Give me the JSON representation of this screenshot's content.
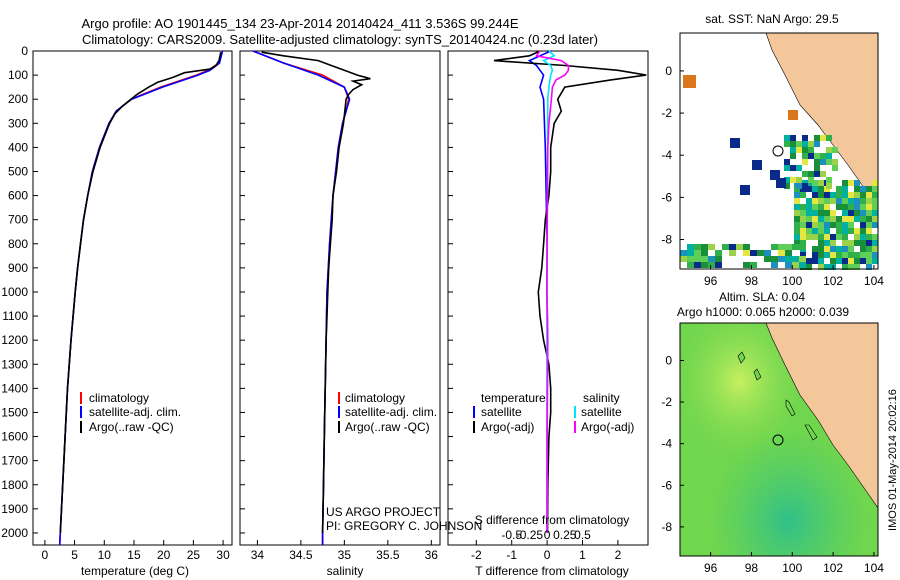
{
  "header": {
    "line1": "Argo profile: AO 1901445_134 23-Apr-2014 20140424_411 3.536S 99.244E",
    "line2": "Climatology: CARS2009. Satellite-adjusted climatology: synTS_20140424.nc (0.23d later)"
  },
  "colors": {
    "red": "#ff0000",
    "blue": "#0000ff",
    "black": "#000000",
    "cyan": "#00e5ff",
    "magenta": "#ff00ff",
    "land": "#f4c79b"
  },
  "depth_axis": {
    "ticks": [
      0,
      100,
      200,
      300,
      400,
      500,
      600,
      700,
      800,
      900,
      1000,
      1100,
      1200,
      1300,
      1400,
      1500,
      1600,
      1700,
      1800,
      1900,
      2000
    ]
  },
  "panels": {
    "temperature": {
      "xlabel": "temperature (deg C)",
      "xticks": [
        0,
        5,
        10,
        15,
        20,
        25,
        30
      ],
      "xlim": [
        -2,
        31.5
      ]
    },
    "salinity": {
      "xlabel": "salinity",
      "xticks": [
        "34",
        "34.5",
        "35",
        "35.5",
        "36"
      ],
      "xlim": [
        33.8,
        36.1
      ]
    },
    "difference": {
      "xlabel_bottom": "T difference from climatology",
      "xlabel_top": "S difference from climatology",
      "xticks_T": [
        "-2",
        "-1",
        "0",
        "1",
        "2"
      ],
      "xticks_S": [
        "-0.5",
        "-0.25",
        "0",
        "0.25",
        "0.5"
      ],
      "xlim_T": [
        -2.8,
        2.85
      ]
    }
  },
  "legend_profiles": {
    "items": [
      "climatology",
      "satellite-adj. clim.",
      "Argo(..raw -QC)"
    ]
  },
  "legend_diff": {
    "temp_title": "temperature",
    "sal_title": "salinity",
    "temp_items": [
      "satellite",
      "Argo(-adj)"
    ],
    "sal_items": [
      "satellite",
      "Argo(-adj)"
    ]
  },
  "credit": {
    "line1": "US ARGO PROJECT",
    "line2": "PI: GREGORY C. JOHNSON"
  },
  "map_sst": {
    "title": "sat. SST: NaN Argo: 29.5",
    "xticks": [
      "96",
      "98",
      "100",
      "102",
      "104"
    ],
    "yticks": [
      "0",
      "-2",
      "-4",
      "-6",
      "-8"
    ]
  },
  "map_sla": {
    "title1": "Altim. SLA: 0.04",
    "title2": "Argo h1000: 0.065 h2000: 0.039",
    "xticks": [
      "96",
      "98",
      "100",
      "102",
      "104"
    ],
    "yticks": [
      "0",
      "-2",
      "-4",
      "-6",
      "-8"
    ]
  },
  "sidebar": {
    "label": "IMOS 01-May-2014 20:02:16"
  },
  "chart_data": [
    {
      "type": "line",
      "title": "",
      "xlabel": "temperature (deg C)",
      "ylabel": "",
      "ylim": [
        2050,
        0
      ],
      "series": [
        {
          "name": "climatology",
          "depth": [
            0,
            50,
            80,
            100,
            150,
            200,
            250,
            300,
            400,
            500,
            600,
            700,
            800,
            900,
            1000,
            1200,
            1400,
            1600,
            1800,
            2000,
            2050
          ],
          "values": [
            29.8,
            29.3,
            27.5,
            25.5,
            19.5,
            14.5,
            12.0,
            10.8,
            9.2,
            8.0,
            7.2,
            6.5,
            6.0,
            5.5,
            5.1,
            4.4,
            3.8,
            3.4,
            3.0,
            2.6,
            2.5
          ]
        },
        {
          "name": "satellite-adj. clim.",
          "depth": [
            0,
            50,
            80,
            100,
            150,
            200,
            250,
            300,
            400,
            500,
            600,
            700,
            800,
            900,
            1000,
            1200,
            1400,
            1600,
            1800,
            2000,
            2050
          ],
          "values": [
            29.9,
            29.4,
            27.8,
            25.8,
            19.8,
            14.6,
            12.0,
            10.8,
            9.2,
            8.0,
            7.2,
            6.5,
            6.0,
            5.5,
            5.1,
            4.4,
            3.8,
            3.4,
            3.0,
            2.6,
            2.5
          ]
        },
        {
          "name": "Argo(..raw -QC)",
          "depth": [
            5,
            20,
            40,
            60,
            75,
            90,
            110,
            130,
            150,
            180,
            200,
            230,
            260,
            300,
            400,
            500,
            600,
            700,
            800,
            900,
            1000,
            1200,
            1400,
            1600,
            1800,
            2000
          ],
          "values": [
            29.6,
            29.5,
            29.3,
            28.8,
            27.8,
            23.5,
            21.5,
            19.0,
            17.5,
            15.5,
            14.5,
            13.0,
            11.8,
            10.9,
            9.3,
            8.1,
            7.2,
            6.5,
            6.0,
            5.5,
            5.1,
            4.4,
            3.8,
            3.4,
            3.0,
            2.6
          ]
        }
      ]
    },
    {
      "type": "line",
      "title": "",
      "xlabel": "salinity",
      "ylabel": "",
      "ylim": [
        2050,
        0
      ],
      "series": [
        {
          "name": "climatology",
          "depth": [
            0,
            50,
            100,
            150,
            200,
            300,
            400,
            500,
            600,
            800,
            1000,
            1200,
            1400,
            1600,
            1800,
            2000,
            2050
          ],
          "values": [
            33.95,
            34.3,
            34.75,
            35.0,
            35.05,
            34.98,
            34.93,
            34.9,
            34.87,
            34.83,
            34.8,
            34.79,
            34.78,
            34.77,
            34.76,
            34.75,
            34.75
          ]
        },
        {
          "name": "satellite-adj. clim.",
          "depth": [
            0,
            50,
            100,
            150,
            200,
            300,
            400,
            500,
            600,
            800,
            1000,
            1200,
            1400,
            1600,
            1800,
            2000,
            2050
          ],
          "values": [
            33.95,
            34.3,
            34.7,
            35.0,
            35.06,
            34.98,
            34.93,
            34.9,
            34.87,
            34.83,
            34.8,
            34.79,
            34.78,
            34.77,
            34.76,
            34.75,
            34.75
          ]
        },
        {
          "name": "Argo(..raw -QC)",
          "depth": [
            5,
            20,
            40,
            60,
            80,
            100,
            115,
            125,
            140,
            160,
            180,
            200,
            300,
            400,
            500,
            600,
            700,
            800,
            900,
            1000,
            1100,
            1200,
            1400,
            1600,
            1800,
            2000
          ],
          "values": [
            34.05,
            34.3,
            34.7,
            34.85,
            35.0,
            35.15,
            35.3,
            35.1,
            35.2,
            35.1,
            35.05,
            35.02,
            34.99,
            34.94,
            34.91,
            34.87,
            34.86,
            34.84,
            34.82,
            34.81,
            34.8,
            34.79,
            34.78,
            34.77,
            34.76,
            34.75
          ]
        }
      ]
    },
    {
      "type": "line",
      "title": "",
      "xlabel": "T difference from climatology",
      "ylabel": "",
      "ylim": [
        2050,
        0
      ],
      "series": [
        {
          "name": "temperature satellite",
          "depth": [
            0,
            20,
            40,
            60,
            80,
            100,
            150,
            200,
            400,
            800,
            1200,
            1600,
            2000
          ],
          "values": [
            0.1,
            -0.2,
            -0.5,
            -0.3,
            -0.2,
            -0.1,
            -0.2,
            -0.1,
            -0.05,
            0,
            0,
            0,
            0
          ]
        },
        {
          "name": "temperature Argo(-adj)",
          "depth": [
            0,
            20,
            40,
            60,
            80,
            100,
            120,
            150,
            200,
            250,
            300,
            400,
            500,
            600,
            700,
            800,
            900,
            1000,
            1100,
            1200,
            1300,
            1400,
            1500,
            1600,
            1800,
            2000
          ],
          "values": [
            -0.2,
            -0.5,
            -1.5,
            0.5,
            2.0,
            2.8,
            1.8,
            0.5,
            0.3,
            0.4,
            0.2,
            0.1,
            0.1,
            0.05,
            -0.05,
            -0.1,
            -0.15,
            -0.25,
            -0.2,
            -0.1,
            0.05,
            0.1,
            0.1,
            0.05,
            0.02,
            0.01
          ]
        },
        {
          "name": "salinity satellite",
          "depth": [
            0,
            20,
            40,
            60,
            80,
            100,
            150,
            200,
            400,
            800,
            1200,
            1600,
            2000
          ],
          "values": [
            0.05,
            0.2,
            -0.1,
            0.1,
            0.15,
            0.1,
            0.05,
            0.02,
            0.01,
            0,
            0,
            0,
            0
          ]
        },
        {
          "name": "salinity Argo(-adj)",
          "depth": [
            0,
            20,
            40,
            60,
            80,
            100,
            120,
            150,
            200,
            300,
            400,
            600,
            800,
            1000,
            1100,
            1200,
            1400,
            1600,
            1800,
            2000
          ],
          "values": [
            -0.2,
            -0.3,
            0.4,
            0.6,
            0.6,
            0.5,
            0.25,
            0.15,
            0.12,
            0.05,
            0.02,
            0.01,
            0,
            -0.01,
            0.01,
            0.02,
            0.01,
            0,
            0,
            0
          ]
        }
      ]
    }
  ]
}
